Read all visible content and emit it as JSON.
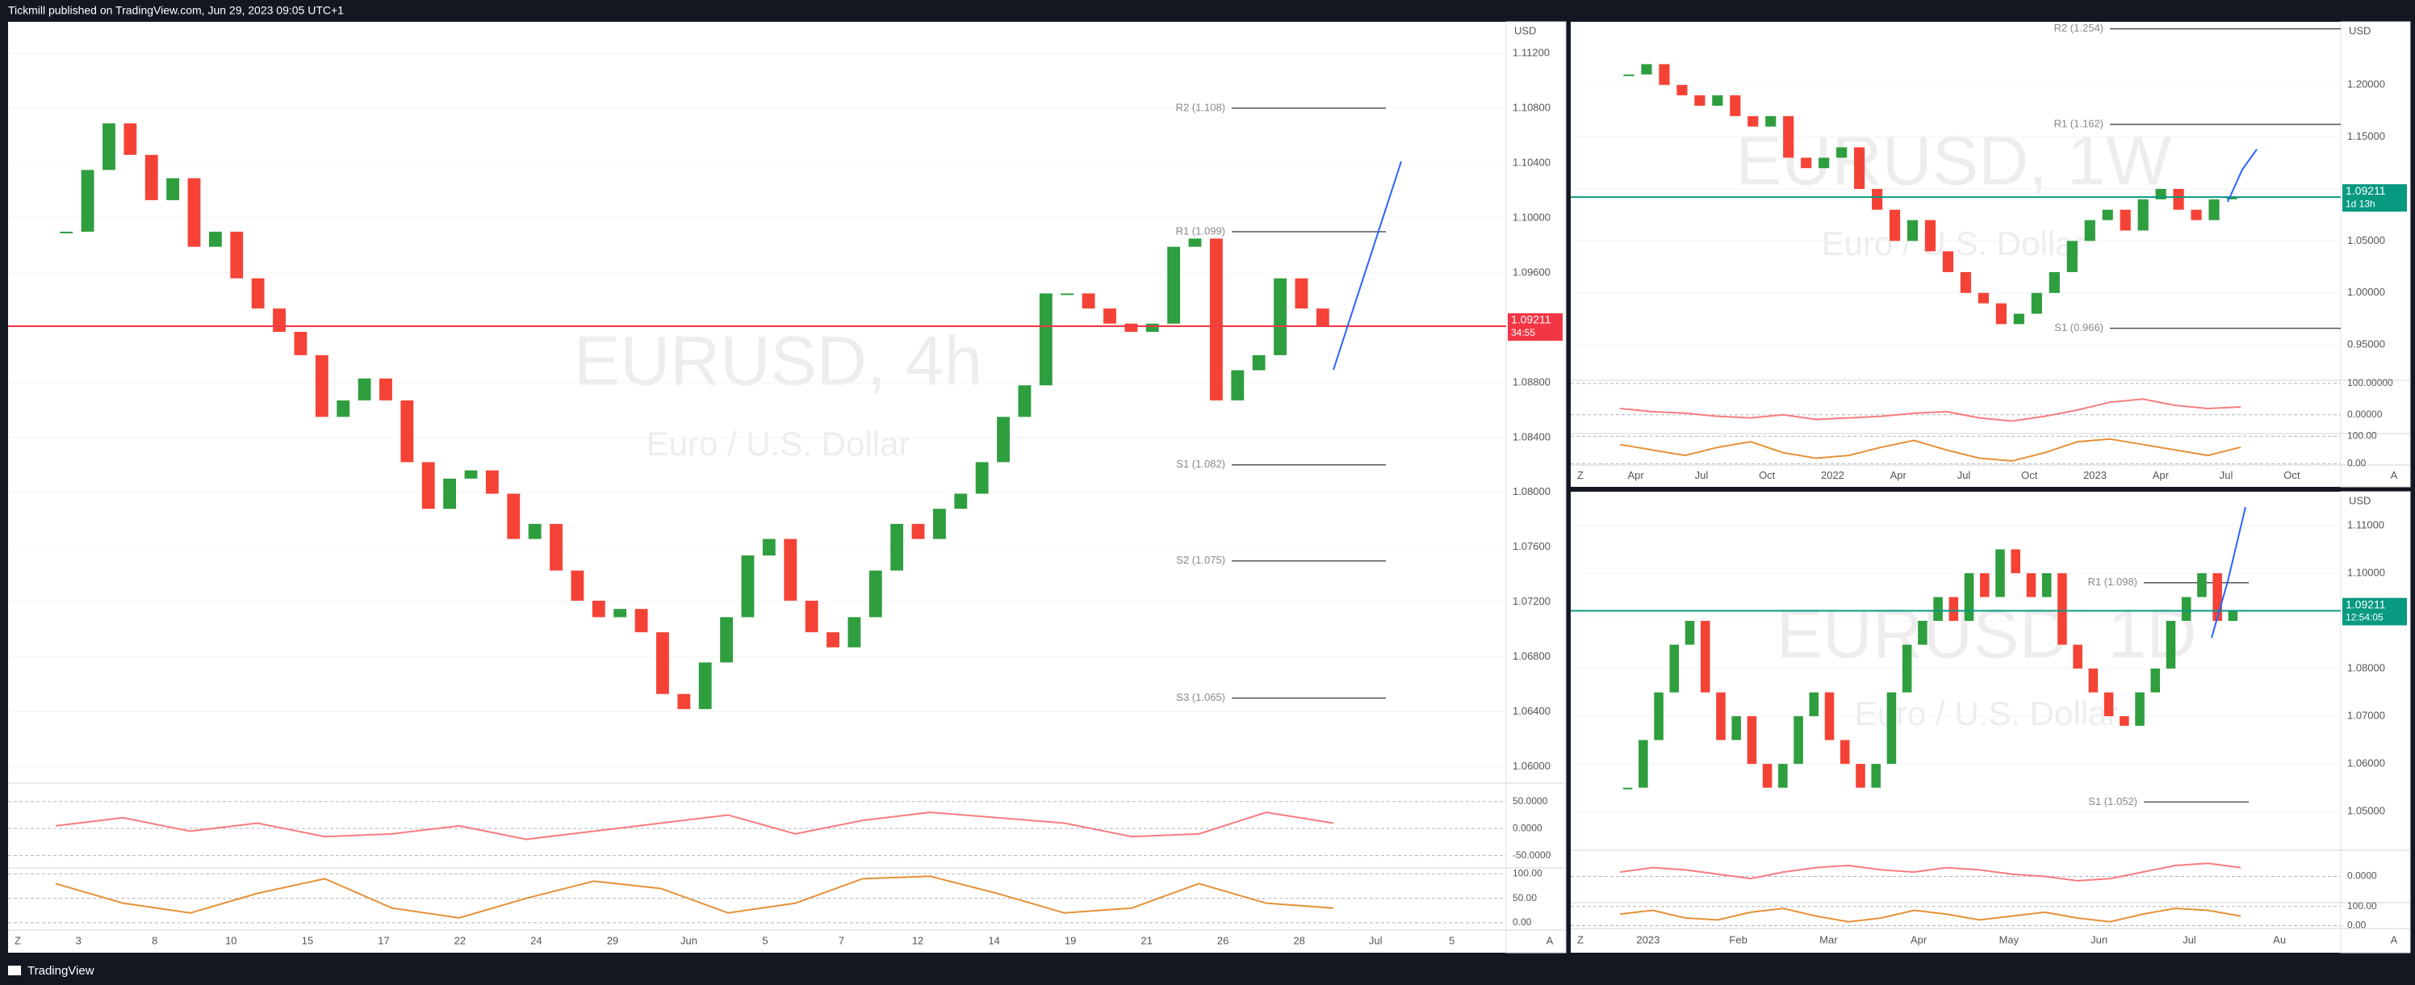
{
  "header": {
    "text": "Tickmill published on TradingView.com, Jun 29, 2023 09:05 UTC+1"
  },
  "footer": {
    "brand": "TradingView"
  },
  "up_color": "#2e9e3e",
  "down_color": "#f44336",
  "panels": [
    {
      "symbol": "EURUSD, 4h",
      "description": "Euro / U.S. Dollar",
      "currency": "USD",
      "corners": [
        "Z",
        "A"
      ],
      "price_tag": {
        "value": 1.09211,
        "countdown": "34:55"
      },
      "ylim": [
        1.0588,
        1.1143
      ],
      "yticks": [
        {
          "value": 1.06,
          "label": "1.06000"
        },
        {
          "value": 1.064,
          "label": "1.06400"
        },
        {
          "value": 1.068,
          "label": "1.06800"
        },
        {
          "value": 1.072,
          "label": "1.07200"
        },
        {
          "value": 1.076,
          "label": "1.07600"
        },
        {
          "value": 1.08,
          "label": "1.08000"
        },
        {
          "value": 1.084,
          "label": "1.08400"
        },
        {
          "value": 1.088,
          "label": "1.08800"
        },
        {
          "value": 1.092,
          "label": "1.09200"
        },
        {
          "value": 1.096,
          "label": "1.09600"
        },
        {
          "value": 1.1,
          "label": "1.10000"
        },
        {
          "value": 1.104,
          "label": "1.10400"
        },
        {
          "value": 1.108,
          "label": "1.10800"
        },
        {
          "value": 1.112,
          "label": "1.11200"
        }
      ],
      "time_labels": [
        "3",
        "8",
        "10",
        "15",
        "17",
        "22",
        "24",
        "29",
        "Jun",
        "5",
        "7",
        "12",
        "14",
        "19",
        "21",
        "26",
        "28",
        "Jul",
        "5"
      ],
      "closes": [
        1.099,
        1.1035,
        1.1069,
        1.1046,
        1.1013,
        1.1029,
        1.0979,
        1.099,
        1.0956,
        1.0934,
        1.0917,
        1.09,
        1.0855,
        1.0867,
        1.0883,
        1.0867,
        1.0822,
        1.0788,
        1.081,
        1.0816,
        1.0799,
        1.0766,
        1.0777,
        1.0743,
        1.0721,
        1.0709,
        1.0715,
        1.0698,
        1.0653,
        1.0642,
        1.0676,
        1.0709,
        1.0754,
        1.0766,
        1.0721,
        1.0698,
        1.0687,
        1.0709,
        1.0743,
        1.0777,
        1.0766,
        1.0788,
        1.0799,
        1.0822,
        1.0855,
        1.0878,
        1.0945,
        1.0945,
        1.0934,
        1.0923,
        1.0917,
        1.0923,
        1.0979,
        1.0985,
        1.0867,
        1.0889,
        1.09,
        1.0956,
        1.0934,
        1.0921
      ],
      "pivots": [
        {
          "label": "R2 (1.108)",
          "value": 1.108
        },
        {
          "label": "R1 (1.099)",
          "value": 1.099
        },
        {
          "label": "S1 (1.082)",
          "value": 1.082
        },
        {
          "label": "S2 (1.075)",
          "value": 1.075
        },
        {
          "label": "S3 (1.065)",
          "value": 1.065
        }
      ],
      "osc1_lim": [
        -73,
        84
      ],
      "osc1_ticks": [
        {
          "value": 50,
          "label": "50.0000"
        },
        {
          "value": 0,
          "label": "0.0000"
        },
        {
          "value": -50,
          "label": "-50.0000"
        }
      ],
      "osc1": [
        5,
        20,
        -5,
        10,
        -15,
        -10,
        5,
        -20,
        -5,
        10,
        25,
        -10,
        15,
        30,
        20,
        10,
        -15,
        -10,
        30,
        10
      ],
      "osc2_lim": [
        -15,
        112
      ],
      "osc2_ticks": [
        {
          "value": 100,
          "label": "100.00"
        },
        {
          "value": 50,
          "label": "50.00"
        },
        {
          "value": 0,
          "label": "0.00"
        }
      ],
      "osc2": [
        80,
        40,
        20,
        60,
        90,
        30,
        10,
        50,
        85,
        70,
        20,
        40,
        90,
        95,
        60,
        20,
        30,
        80,
        40,
        30
      ]
    },
    {
      "symbol": "EURUSD, 1W",
      "description": "Euro / U.S. Dollar",
      "currency": "USD",
      "corners": [
        "Z",
        "A"
      ],
      "price_tag": {
        "value": 1.09211,
        "countdown": "1d 13h"
      },
      "ylim": [
        0.916,
        1.2607
      ],
      "yticks": [
        {
          "value": 0.95,
          "label": "0.95000"
        },
        {
          "value": 1,
          "label": "1.00000"
        },
        {
          "value": 1.05,
          "label": "1.05000"
        },
        {
          "value": 1.1,
          "label": "1.10000"
        },
        {
          "value": 1.15,
          "label": "1.15000"
        },
        {
          "value": 1.2,
          "label": "1.20000"
        }
      ],
      "time_labels": [
        "Apr",
        "Jul",
        "Oct",
        "2022",
        "Apr",
        "Jul",
        "Oct",
        "2023",
        "Apr",
        "Jul",
        "Oct"
      ],
      "closes": [
        1.21,
        1.22,
        1.2,
        1.19,
        1.18,
        1.19,
        1.17,
        1.16,
        1.17,
        1.13,
        1.12,
        1.13,
        1.14,
        1.1,
        1.08,
        1.05,
        1.07,
        1.04,
        1.02,
        1.0,
        0.99,
        0.97,
        0.98,
        1.0,
        1.02,
        1.05,
        1.07,
        1.08,
        1.06,
        1.09,
        1.1,
        1.08,
        1.07,
        1.09,
        1.0921
      ],
      "pivots": [
        {
          "label": "R2 (1.254)",
          "value": 1.254
        },
        {
          "label": "R1 (1.162)",
          "value": 1.162
        },
        {
          "label": "S1 (0.966)",
          "value": 0.966
        }
      ],
      "osc1_lim": [
        -60,
        110
      ],
      "osc1_ticks": [
        {
          "value": 100,
          "label": "100.00000"
        },
        {
          "value": 0,
          "label": "0.00000"
        }
      ],
      "osc1": [
        20,
        10,
        5,
        -5,
        -10,
        0,
        -15,
        -10,
        -5,
        5,
        10,
        -10,
        -20,
        -5,
        15,
        40,
        50,
        30,
        20,
        25
      ],
      "osc2_lim": [
        -5,
        110
      ],
      "osc2_ticks": [
        {
          "value": 100,
          "label": "100.00"
        },
        {
          "value": 0,
          "label": "0.00"
        }
      ],
      "osc2": [
        70,
        50,
        30,
        60,
        80,
        40,
        20,
        30,
        60,
        85,
        50,
        20,
        10,
        40,
        80,
        90,
        70,
        50,
        30,
        60
      ]
    },
    {
      "symbol": "EURUSD, 1D",
      "description": "Euro / U.S. Dollar",
      "currency": "USD",
      "corners": [
        "Z",
        "A"
      ],
      "price_tag": {
        "value": 1.09211,
        "countdown": "12:54:05"
      },
      "ylim": [
        1.0419,
        1.1171
      ],
      "yticks": [
        {
          "value": 1.05,
          "label": "1.05000"
        },
        {
          "value": 1.06,
          "label": "1.06000"
        },
        {
          "value": 1.07,
          "label": "1.07000"
        },
        {
          "value": 1.08,
          "label": "1.08000"
        },
        {
          "value": 1.09,
          "label": "1.09000"
        },
        {
          "value": 1.1,
          "label": "1.10000"
        },
        {
          "value": 1.11,
          "label": "1.11000"
        }
      ],
      "time_labels": [
        "2023",
        "Feb",
        "Mar",
        "Apr",
        "May",
        "Jun",
        "Jul",
        "Au"
      ],
      "closes": [
        1.055,
        1.065,
        1.075,
        1.085,
        1.09,
        1.075,
        1.065,
        1.07,
        1.06,
        1.055,
        1.06,
        1.07,
        1.075,
        1.065,
        1.06,
        1.055,
        1.06,
        1.075,
        1.085,
        1.09,
        1.095,
        1.09,
        1.1,
        1.095,
        1.105,
        1.1,
        1.095,
        1.1,
        1.085,
        1.08,
        1.075,
        1.07,
        1.068,
        1.075,
        1.08,
        1.09,
        1.095,
        1.1,
        1.09,
        1.0921
      ],
      "pivots": [
        {
          "label": "R1 (1.098)",
          "value": 1.098
        },
        {
          "label": "S1 (1.052)",
          "value": 1.052
        }
      ],
      "osc1_lim": [
        -60,
        60
      ],
      "osc1_ticks": [
        {
          "value": 0,
          "label": "0.0000"
        }
      ],
      "osc1": [
        10,
        20,
        15,
        5,
        -5,
        10,
        20,
        25,
        15,
        10,
        20,
        15,
        5,
        0,
        -10,
        -5,
        10,
        25,
        30,
        20
      ],
      "osc2_lim": [
        -15,
        120
      ],
      "osc2_ticks": [
        {
          "value": 100,
          "label": "100.00"
        },
        {
          "value": 0,
          "label": "0.00"
        }
      ],
      "osc2": [
        60,
        80,
        40,
        30,
        70,
        90,
        50,
        20,
        40,
        80,
        60,
        30,
        50,
        70,
        40,
        20,
        60,
        90,
        80,
        50
      ]
    }
  ]
}
